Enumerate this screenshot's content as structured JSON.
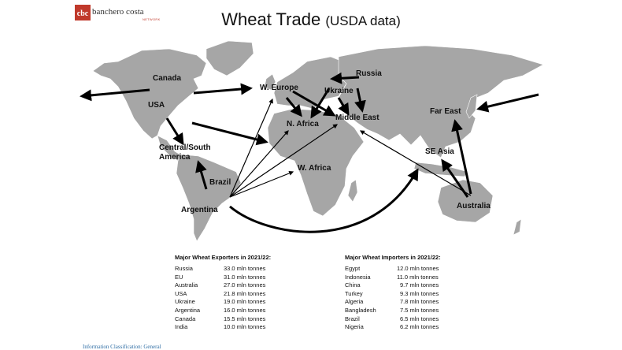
{
  "logo": {
    "name": "banchero costa",
    "sub": "NETWORK",
    "icon": "cbc-logo-mark",
    "color": "#c0392b"
  },
  "title": {
    "main": "Wheat Trade",
    "source": "(USDA data)"
  },
  "map": {
    "land_color": "#a6a6a6",
    "arrow_color": "#000000",
    "regions": {
      "canada": "Canada",
      "usa": "USA",
      "central_south_america": "Central/South America",
      "brazil": "Brazil",
      "argentina": "Argentina",
      "w_europe": "W. Europe",
      "russia": "Russia",
      "ukraine": "Ukraine",
      "n_africa": "N. Africa",
      "middle_east": "Middle East",
      "w_africa": "W. Africa",
      "far_east": "Far East",
      "se_asia": "SE Asia",
      "australia": "Australia"
    },
    "flows": [
      {
        "from": "Canada",
        "to": "west (off map)"
      },
      {
        "from": "Canada",
        "to": "W. Europe"
      },
      {
        "from": "USA",
        "to": "Central/South America"
      },
      {
        "from": "USA",
        "to": "N. Africa"
      },
      {
        "from": "Brazil",
        "to": "Central/South America"
      },
      {
        "from": "Argentina",
        "to": "W. Europe"
      },
      {
        "from": "Argentina",
        "to": "N. Africa"
      },
      {
        "from": "Argentina",
        "to": "Middle East"
      },
      {
        "from": "Argentina",
        "to": "W. Africa"
      },
      {
        "from": "Argentina",
        "to": "SE Asia"
      },
      {
        "from": "W. Europe",
        "to": "N. Africa"
      },
      {
        "from": "W. Europe",
        "to": "Middle East"
      },
      {
        "from": "Russia",
        "to": "N. Africa"
      },
      {
        "from": "Russia",
        "to": "Middle East"
      },
      {
        "from": "Ukraine",
        "to": "Middle East"
      },
      {
        "from": "east (off map)",
        "to": "Far East"
      },
      {
        "from": "Australia",
        "to": "Far East"
      },
      {
        "from": "Australia",
        "to": "SE Asia"
      },
      {
        "from": "Australia",
        "to": "Middle East"
      }
    ]
  },
  "exporters": {
    "title": "Major Wheat Exporters in 2021/22:",
    "rows": [
      {
        "country": "Russia",
        "value": "33.0 mln tonnes"
      },
      {
        "country": "EU",
        "value": "31.0 mln tonnes"
      },
      {
        "country": "Australia",
        "value": "27.0 mln tonnes"
      },
      {
        "country": "USA",
        "value": "21.8 mln tonnes"
      },
      {
        "country": "Ukraine",
        "value": "19.0 mln tonnes"
      },
      {
        "country": "Argentina",
        "value": "16.0 mln tonnes"
      },
      {
        "country": "Canada",
        "value": "15.5 mln tonnes"
      },
      {
        "country": "India",
        "value": "10.0 mln tonnes"
      }
    ]
  },
  "importers": {
    "title": "Major Wheat Importers in 2021/22:",
    "rows": [
      {
        "country": "Egypt",
        "value": "12.0 mln tonnes"
      },
      {
        "country": "Indonesia",
        "value": "11.0 mln tonnes"
      },
      {
        "country": "China",
        "value": "9.7 mln tonnes"
      },
      {
        "country": "Turkey",
        "value": "9.3 mln tonnes"
      },
      {
        "country": "Algeria",
        "value": "7.8 mln tonnes"
      },
      {
        "country": "Bangladesh",
        "value": "7.5 mln tonnes"
      },
      {
        "country": "Brazil",
        "value": "6.5 mln tonnes"
      },
      {
        "country": "Nigeria",
        "value": "6.2 mln tonnes"
      }
    ]
  },
  "footer": "Information Classification: General"
}
